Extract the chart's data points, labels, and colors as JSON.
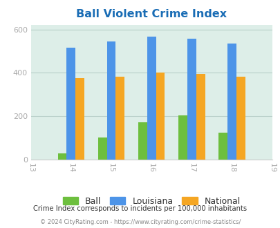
{
  "title": "Ball Violent Crime Index",
  "title_color": "#1a6db5",
  "years": [
    2013,
    2014,
    2015,
    2016,
    2017,
    2018,
    2019
  ],
  "bar_years": [
    2014,
    2015,
    2016,
    2017,
    2018
  ],
  "ball": [
    30,
    103,
    173,
    203,
    125
  ],
  "louisiana": [
    515,
    543,
    568,
    558,
    535
  ],
  "national": [
    375,
    383,
    400,
    395,
    382
  ],
  "ball_color": "#6dbf3e",
  "louisiana_color": "#4d94e8",
  "national_color": "#f5a623",
  "bg_color": "#ddeee8",
  "ylim": [
    0,
    620
  ],
  "yticks": [
    0,
    200,
    400,
    600
  ],
  "bar_width": 0.22,
  "legend_labels": [
    "Ball",
    "Louisiana",
    "National"
  ],
  "footnote1": "Crime Index corresponds to incidents per 100,000 inhabitants",
  "footnote2": "© 2024 CityRating.com - https://www.cityrating.com/crime-statistics/",
  "footnote1_color": "#333333",
  "footnote2_color": "#888888",
  "grid_color": "#b8cfc8"
}
